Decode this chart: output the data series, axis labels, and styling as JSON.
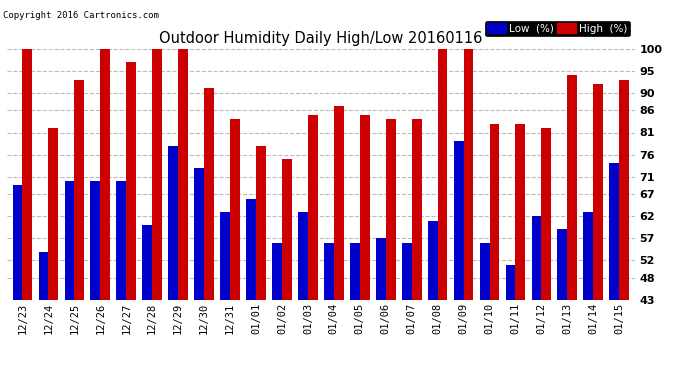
{
  "title": "Outdoor Humidity Daily High/Low 20160116",
  "copyright": "Copyright 2016 Cartronics.com",
  "dates": [
    "12/23",
    "12/24",
    "12/25",
    "12/26",
    "12/27",
    "12/28",
    "12/29",
    "12/30",
    "12/31",
    "01/01",
    "01/02",
    "01/03",
    "01/04",
    "01/05",
    "01/06",
    "01/07",
    "01/08",
    "01/09",
    "01/10",
    "01/11",
    "01/12",
    "01/13",
    "01/14",
    "01/15"
  ],
  "low": [
    69,
    54,
    70,
    70,
    70,
    60,
    78,
    73,
    63,
    66,
    56,
    63,
    56,
    56,
    57,
    56,
    61,
    79,
    56,
    51,
    62,
    59,
    63,
    74
  ],
  "high": [
    100,
    82,
    93,
    100,
    97,
    100,
    100,
    91,
    84,
    78,
    75,
    85,
    87,
    85,
    84,
    84,
    100,
    100,
    83,
    83,
    82,
    94,
    92,
    93
  ],
  "low_color": "#0000cc",
  "high_color": "#cc0000",
  "bg_color": "#ffffff",
  "grid_color": "#bbbbbb",
  "ylim_min": 43,
  "ylim_max": 100,
  "yticks": [
    43,
    48,
    52,
    57,
    62,
    67,
    71,
    76,
    81,
    86,
    90,
    95,
    100
  ],
  "bar_width": 0.38,
  "legend_low_label": "Low  (%)",
  "legend_high_label": "High  (%)"
}
